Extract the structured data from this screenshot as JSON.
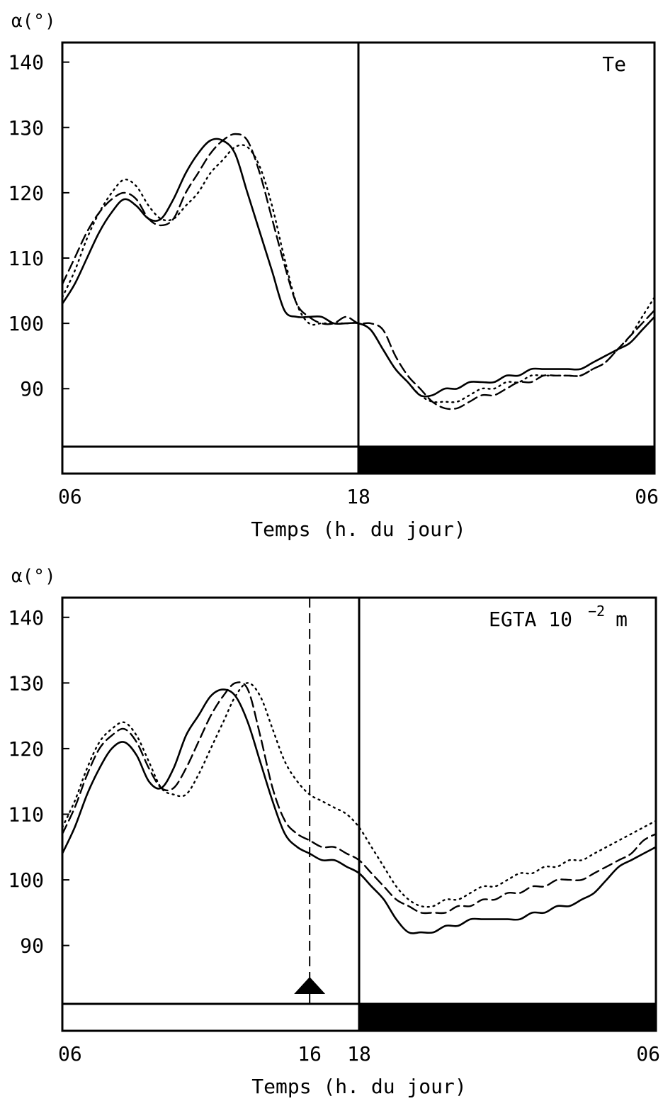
{
  "chart_data": [
    {
      "type": "line",
      "title": "",
      "annotation": "Te",
      "ylabel": "α(°)",
      "xlabel": "Temps (h. du jour)",
      "x_ticks": [
        "06",
        "18",
        "06"
      ],
      "x_tick_values": [
        6,
        18,
        30
      ],
      "y_ticks": [
        "140",
        "130",
        "120",
        "110",
        "100",
        "90"
      ],
      "y_tick_values": [
        140,
        130,
        120,
        110,
        100,
        90
      ],
      "xlim": [
        6,
        30
      ],
      "ylim": [
        77,
        143
      ],
      "grid": false,
      "light_phase": [
        6,
        18
      ],
      "dark_phase": [
        18,
        30
      ],
      "series": [
        {
          "style": "solid",
          "x": [
            6,
            6.5,
            7,
            7.5,
            8,
            8.5,
            9,
            9.5,
            10,
            10.5,
            11,
            11.5,
            12,
            12.5,
            13,
            13.5,
            14,
            14.5,
            15,
            15.5,
            16,
            16.5,
            17,
            17.5,
            18,
            18.5,
            19,
            19.5,
            20,
            20.5,
            21,
            21.5,
            22,
            22.5,
            23,
            23.5,
            24,
            24.5,
            25,
            25.5,
            26,
            26.5,
            27,
            27.5,
            28,
            28.5,
            29,
            29.5,
            30
          ],
          "y": [
            103,
            106,
            110,
            114,
            117,
            119,
            118,
            116,
            116,
            119,
            123,
            126,
            128,
            128,
            126,
            120,
            114,
            108,
            102,
            101,
            101,
            101,
            100,
            100,
            100,
            99,
            96,
            93,
            91,
            89,
            89,
            90,
            90,
            91,
            91,
            91,
            92,
            92,
            93,
            93,
            93,
            93,
            93,
            94,
            95,
            96,
            97,
            99,
            101
          ]
        },
        {
          "style": "dashed",
          "x": [
            6,
            6.5,
            7,
            7.5,
            8,
            8.5,
            9,
            9.5,
            10,
            10.5,
            11,
            11.5,
            12,
            12.5,
            13,
            13.5,
            14,
            14.5,
            15,
            15.5,
            16,
            16.5,
            17,
            17.5,
            18,
            18.5,
            19,
            19.5,
            20,
            20.5,
            21,
            21.5,
            22,
            22.5,
            23,
            23.5,
            24,
            24.5,
            25,
            25.5,
            26,
            26.5,
            27,
            27.5,
            28,
            28.5,
            29,
            29.5,
            30
          ],
          "y": [
            106,
            110,
            114,
            117,
            119,
            120,
            119,
            116,
            115,
            116,
            120,
            123,
            126,
            128,
            129,
            128,
            123,
            116,
            109,
            103,
            101,
            100,
            100,
            101,
            100,
            100,
            99,
            95,
            92,
            90,
            88,
            87,
            87,
            88,
            89,
            89,
            90,
            91,
            91,
            92,
            92,
            92,
            92,
            93,
            94,
            96,
            98,
            100,
            102
          ]
        },
        {
          "style": "dotted",
          "x": [
            6,
            6.5,
            7,
            7.5,
            8,
            8.5,
            9,
            9.5,
            10,
            10.5,
            11,
            11.5,
            12,
            12.5,
            13,
            13.5,
            14,
            14.5,
            15,
            15.5,
            16,
            16.5,
            17,
            17.5,
            18,
            18.5,
            19,
            19.5,
            20,
            20.5,
            21,
            21.5,
            22,
            22.5,
            23,
            23.5,
            24,
            24.5,
            25,
            25.5,
            26,
            26.5,
            27,
            27.5,
            28,
            28.5,
            29,
            29.5,
            30
          ],
          "y": [
            104,
            108,
            113,
            117,
            120,
            122,
            121,
            118,
            116,
            116,
            118,
            120,
            123,
            125,
            127,
            127,
            124,
            118,
            110,
            103,
            100,
            100,
            100,
            100,
            100,
            99,
            96,
            93,
            91,
            89,
            88,
            88,
            88,
            89,
            90,
            90,
            91,
            91,
            92,
            92,
            92,
            92,
            92,
            93,
            94,
            96,
            98,
            101,
            104
          ]
        }
      ]
    },
    {
      "type": "line",
      "title": "",
      "annotation": "EGTA 10",
      "annotation_superscript": "−2",
      "annotation_suffix": "m",
      "ylabel": "α(°)",
      "xlabel": "Temps (h. du jour)",
      "x_ticks": [
        "06",
        "16",
        "18",
        "06"
      ],
      "x_tick_values": [
        6,
        16,
        18,
        30
      ],
      "y_ticks": [
        "140",
        "130",
        "120",
        "110",
        "100",
        "90"
      ],
      "y_tick_values": [
        140,
        130,
        120,
        110,
        100,
        90
      ],
      "xlim": [
        6,
        30
      ],
      "ylim": [
        77,
        143
      ],
      "grid": false,
      "light_phase": [
        6,
        18
      ],
      "dark_phase": [
        18,
        30
      ],
      "treatment_time": 16,
      "series": [
        {
          "style": "solid",
          "x": [
            6,
            6.5,
            7,
            7.5,
            8,
            8.5,
            9,
            9.5,
            10,
            10.5,
            11,
            11.5,
            12,
            12.5,
            13,
            13.5,
            14,
            14.5,
            15,
            15.5,
            16,
            16.5,
            17,
            17.5,
            18,
            18.5,
            19,
            19.5,
            20,
            20.5,
            21,
            21.5,
            22,
            22.5,
            23,
            23.5,
            24,
            24.5,
            25,
            25.5,
            26,
            26.5,
            27,
            27.5,
            28,
            28.5,
            29,
            29.5,
            30
          ],
          "y": [
            104,
            108,
            113,
            117,
            120,
            121,
            119,
            115,
            114,
            117,
            122,
            125,
            128,
            129,
            128,
            124,
            118,
            112,
            107,
            105,
            104,
            103,
            103,
            102,
            101,
            99,
            97,
            94,
            92,
            92,
            92,
            93,
            93,
            94,
            94,
            94,
            94,
            94,
            95,
            95,
            96,
            96,
            97,
            98,
            100,
            102,
            103,
            104,
            105
          ]
        },
        {
          "style": "dashed",
          "x": [
            6,
            6.5,
            7,
            7.5,
            8,
            8.5,
            9,
            9.5,
            10,
            10.5,
            11,
            11.5,
            12,
            12.5,
            13,
            13.5,
            14,
            14.5,
            15,
            15.5,
            16,
            16.5,
            17,
            17.5,
            18,
            18.5,
            19,
            19.5,
            20,
            20.5,
            21,
            21.5,
            22,
            22.5,
            23,
            23.5,
            24,
            24.5,
            25,
            25.5,
            26,
            26.5,
            27,
            27.5,
            28,
            28.5,
            29,
            29.5,
            30
          ],
          "y": [
            107,
            111,
            116,
            120,
            122,
            123,
            121,
            117,
            114,
            114,
            117,
            121,
            125,
            128,
            130,
            129,
            122,
            114,
            109,
            107,
            106,
            105,
            105,
            104,
            103,
            101,
            99,
            97,
            96,
            95,
            95,
            95,
            96,
            96,
            97,
            97,
            98,
            98,
            99,
            99,
            100,
            100,
            100,
            101,
            102,
            103,
            104,
            106,
            107
          ]
        },
        {
          "style": "dotted",
          "x": [
            6,
            6.5,
            7,
            7.5,
            8,
            8.5,
            9,
            9.5,
            10,
            10.5,
            11,
            11.5,
            12,
            12.5,
            13,
            13.5,
            14,
            14.5,
            15,
            15.5,
            16,
            16.5,
            17,
            17.5,
            18,
            18.5,
            19,
            19.5,
            20,
            20.5,
            21,
            21.5,
            22,
            22.5,
            23,
            23.5,
            24,
            24.5,
            25,
            25.5,
            26,
            26.5,
            27,
            27.5,
            28,
            28.5,
            29,
            29.5,
            30
          ],
          "y": [
            108,
            112,
            117,
            121,
            123,
            124,
            122,
            118,
            114,
            113,
            113,
            116,
            120,
            124,
            128,
            130,
            128,
            123,
            118,
            115,
            113,
            112,
            111,
            110,
            108,
            105,
            102,
            99,
            97,
            96,
            96,
            97,
            97,
            98,
            99,
            99,
            100,
            101,
            101,
            102,
            102,
            103,
            103,
            104,
            105,
            106,
            107,
            108,
            109
          ]
        }
      ]
    }
  ]
}
